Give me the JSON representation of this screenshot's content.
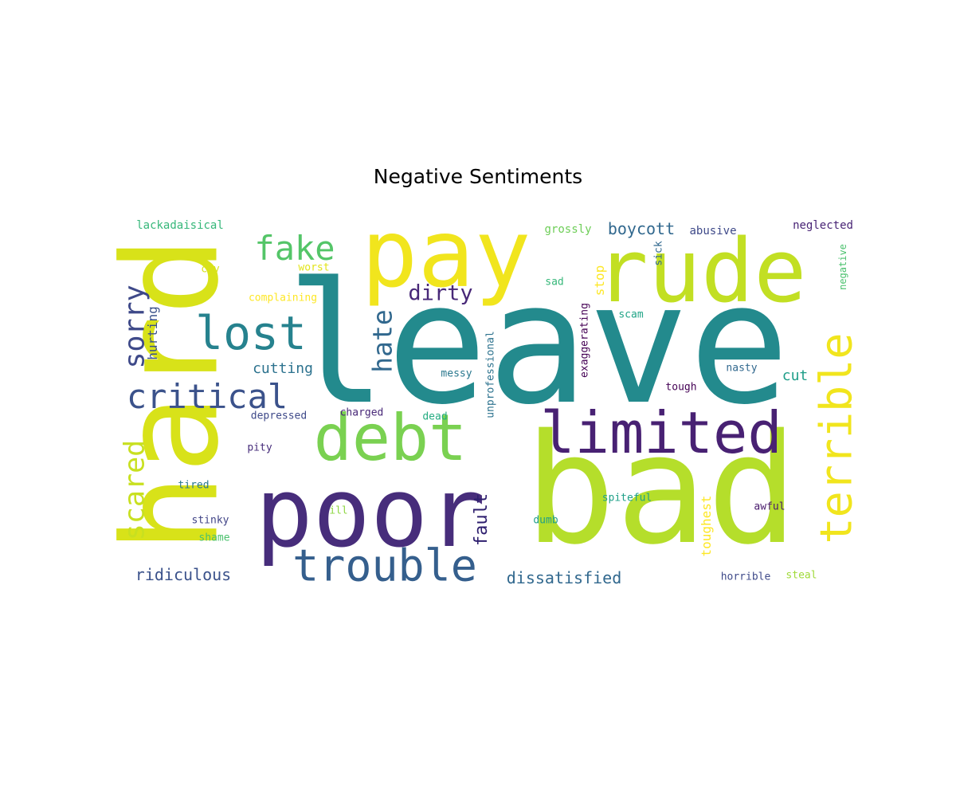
{
  "figure": {
    "title": "Negative Sentiments"
  },
  "words": [
    {
      "text": "leave",
      "color": "#238a8d"
    },
    {
      "text": "bad",
      "color": "#b5de2b"
    },
    {
      "text": "hard",
      "color": "#d8e219"
    },
    {
      "text": "pay",
      "color": "#f1e51d"
    },
    {
      "text": "rude",
      "color": "#c2df23"
    },
    {
      "text": "poor",
      "color": "#472d7b"
    },
    {
      "text": "debt",
      "color": "#7ad151"
    },
    {
      "text": "limited",
      "color": "#482173"
    },
    {
      "text": "trouble",
      "color": "#355f8d"
    },
    {
      "text": "terrible",
      "color": "#f1e51d"
    },
    {
      "text": "lost",
      "color": "#26828e"
    },
    {
      "text": "fake",
      "color": "#54c568"
    },
    {
      "text": "critical",
      "color": "#3b528b"
    },
    {
      "text": "sorry",
      "color": "#3e4989"
    },
    {
      "text": "scared",
      "color": "#c8e020"
    },
    {
      "text": "hate",
      "color": "#31688e"
    },
    {
      "text": "dirty",
      "color": "#482878"
    },
    {
      "text": "fault",
      "color": "#2d1e6e"
    },
    {
      "text": "dissatisfied",
      "color": "#31688e"
    },
    {
      "text": "ridiculous",
      "color": "#3b528b"
    },
    {
      "text": "boycott",
      "color": "#31688e"
    },
    {
      "text": "cutting",
      "color": "#2c728e"
    },
    {
      "text": "cut",
      "color": "#1f9e89"
    },
    {
      "text": "hurting",
      "color": "#3b528b"
    },
    {
      "text": "toughest",
      "color": "#fde725"
    },
    {
      "text": "stop",
      "color": "#fde725"
    },
    {
      "text": "unprofessional",
      "color": "#2c728e"
    },
    {
      "text": "exaggerating",
      "color": "#440154"
    },
    {
      "text": "lackadaisical",
      "color": "#35b779"
    },
    {
      "text": "grossly",
      "color": "#6ece58"
    },
    {
      "text": "abusive",
      "color": "#3e4989"
    },
    {
      "text": "neglected",
      "color": "#482475"
    },
    {
      "text": "negative",
      "color": "#4ac16d"
    },
    {
      "text": "sick",
      "color": "#31688e"
    },
    {
      "text": "cry",
      "color": "#d8e219"
    },
    {
      "text": "worst",
      "color": "#e2e418"
    },
    {
      "text": "sad",
      "color": "#35b779"
    },
    {
      "text": "complaining",
      "color": "#fde725"
    },
    {
      "text": "scam",
      "color": "#20a486"
    },
    {
      "text": "messy",
      "color": "#2a788e"
    },
    {
      "text": "nasty",
      "color": "#31688e"
    },
    {
      "text": "tough",
      "color": "#440154"
    },
    {
      "text": "depressed",
      "color": "#3e4989"
    },
    {
      "text": "charged",
      "color": "#482878"
    },
    {
      "text": "dead",
      "color": "#25ac82"
    },
    {
      "text": "pity",
      "color": "#472d7b"
    },
    {
      "text": "tired",
      "color": "#2a788e"
    },
    {
      "text": "spiteful",
      "color": "#1fa088"
    },
    {
      "text": "awful",
      "color": "#481a6c"
    },
    {
      "text": "ill",
      "color": "#8fd744"
    },
    {
      "text": "stinky",
      "color": "#414487"
    },
    {
      "text": "dumb",
      "color": "#1f9e89"
    },
    {
      "text": "shame",
      "color": "#4ac16d"
    },
    {
      "text": "horrible",
      "color": "#3e4989"
    },
    {
      "text": "steal",
      "color": "#a0da39"
    }
  ]
}
